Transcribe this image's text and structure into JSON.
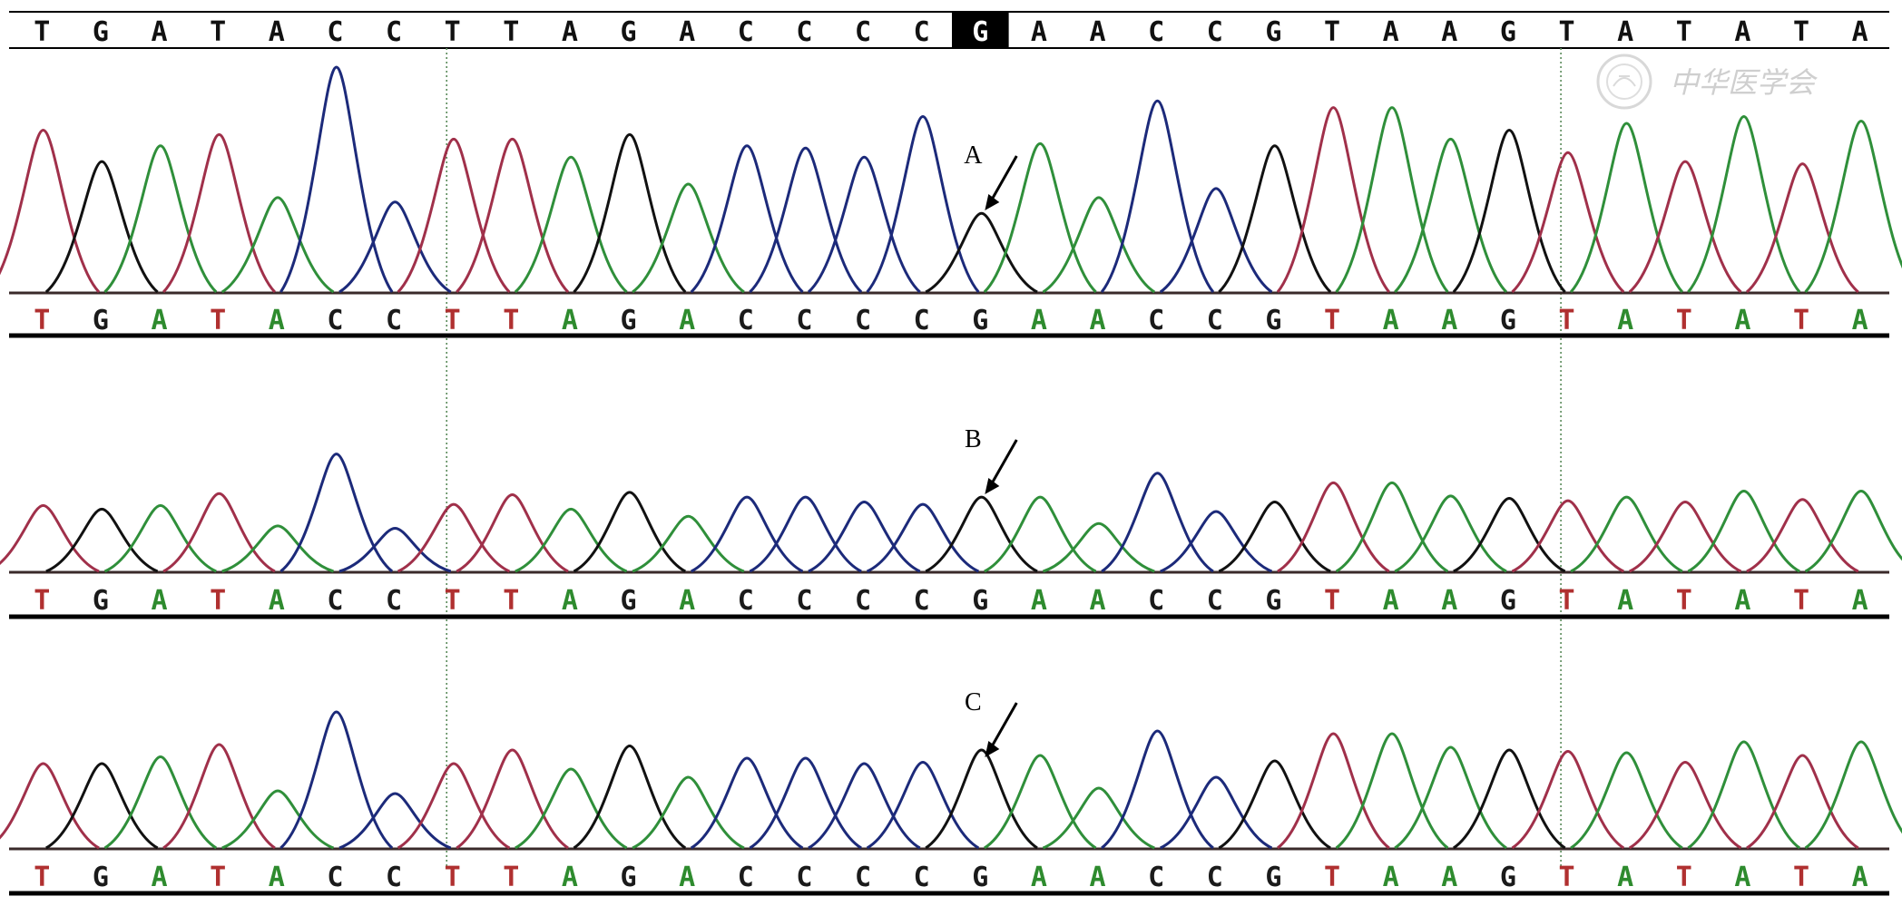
{
  "reference_sequence": "TGATACCTTAGACCCCGAACCGTAAGTATATA",
  "highlighted_base": "G",
  "highlight_index": 16,
  "watermark_text": "中华医学会",
  "base_colors": {
    "A": "#2e8b2e",
    "C": "#1a1a1a",
    "G": "#1a1a1a",
    "T": "#b03030"
  },
  "trace_colors": {
    "A": "#2f8f3a",
    "C": "#1c2a7a",
    "G": "#111111",
    "T": "#a0304a"
  },
  "panels": [
    {
      "label": "A",
      "sequence": "TGATACCTTAGACCCCGAACCGTAAGTATATA",
      "peak_heights": [
        0.72,
        0.58,
        0.65,
        0.7,
        0.42,
        1.0,
        0.4,
        0.68,
        0.68,
        0.6,
        0.7,
        0.48,
        0.65,
        0.64,
        0.6,
        0.78,
        0.35,
        0.66,
        0.42,
        0.85,
        0.46,
        0.65,
        0.82,
        0.82,
        0.68,
        0.72,
        0.62,
        0.75,
        0.58,
        0.78,
        0.57,
        0.76
      ]
    },
    {
      "label": "B",
      "sequence": "TGATACCTTAGACCCCGAACCGTAAGTATATA",
      "peak_heights": [
        0.55,
        0.52,
        0.55,
        0.65,
        0.38,
        0.98,
        0.36,
        0.56,
        0.64,
        0.52,
        0.66,
        0.46,
        0.62,
        0.62,
        0.58,
        0.56,
        0.62,
        0.62,
        0.4,
        0.82,
        0.5,
        0.58,
        0.74,
        0.74,
        0.63,
        0.61,
        0.59,
        0.62,
        0.58,
        0.67,
        0.6,
        0.67
      ]
    },
    {
      "label": "C",
      "sequence": "TGATACCTTAGACCCCGAACCGTAAGTATATA",
      "peak_heights": [
        0.62,
        0.62,
        0.67,
        0.76,
        0.42,
        1.0,
        0.4,
        0.62,
        0.72,
        0.58,
        0.75,
        0.52,
        0.66,
        0.66,
        0.62,
        0.63,
        0.72,
        0.68,
        0.44,
        0.86,
        0.52,
        0.64,
        0.84,
        0.84,
        0.74,
        0.72,
        0.71,
        0.7,
        0.63,
        0.78,
        0.68,
        0.78
      ]
    }
  ]
}
